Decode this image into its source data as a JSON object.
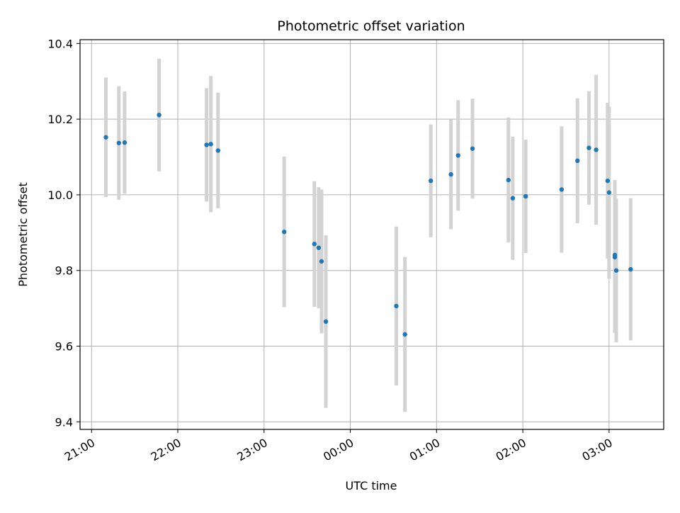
{
  "chart_data": {
    "type": "scatter",
    "title": "Photometric offset variation",
    "xlabel": "UTC time",
    "ylabel": "Photometric offset",
    "x_axis": {
      "kind": "time",
      "range": [
        "20:52",
        "03:38"
      ],
      "ticks": [
        "21:00",
        "22:00",
        "23:00",
        "00:00",
        "01:00",
        "02:00",
        "03:00"
      ]
    },
    "y_axis": {
      "range": [
        9.38,
        10.41
      ],
      "ticks": [
        "9.4",
        "9.6",
        "9.8",
        "10.0",
        "10.2",
        "10.4"
      ]
    },
    "grid": true,
    "legend": "none",
    "colors": {
      "point": "#1f77b4",
      "errorbar": "#d3d3d3"
    },
    "points": [
      {
        "t": "21:10",
        "y": 10.152,
        "err": 0.158
      },
      {
        "t": "21:19",
        "y": 10.137,
        "err": 0.15
      },
      {
        "t": "21:23",
        "y": 10.138,
        "err": 0.135
      },
      {
        "t": "21:47",
        "y": 10.211,
        "err": 0.149
      },
      {
        "t": "22:20",
        "y": 10.132,
        "err": 0.15
      },
      {
        "t": "22:23",
        "y": 10.134,
        "err": 0.18
      },
      {
        "t": "22:28",
        "y": 10.117,
        "err": 0.153
      },
      {
        "t": "23:14",
        "y": 9.902,
        "err": 0.199
      },
      {
        "t": "23:35",
        "y": 9.87,
        "err": 0.166
      },
      {
        "t": "23:38",
        "y": 9.86,
        "err": 0.16
      },
      {
        "t": "23:40",
        "y": 9.824,
        "err": 0.19
      },
      {
        "t": "23:43",
        "y": 9.665,
        "err": 0.228
      },
      {
        "t": "00:32",
        "y": 9.706,
        "err": 0.21
      },
      {
        "t": "00:38",
        "y": 9.631,
        "err": 0.205
      },
      {
        "t": "00:56",
        "y": 10.037,
        "err": 0.149
      },
      {
        "t": "01:10",
        "y": 10.054,
        "err": 0.145
      },
      {
        "t": "01:15",
        "y": 10.104,
        "err": 0.146
      },
      {
        "t": "01:25",
        "y": 10.122,
        "err": 0.132
      },
      {
        "t": "01:50",
        "y": 10.039,
        "err": 0.165
      },
      {
        "t": "01:53",
        "y": 9.991,
        "err": 0.163
      },
      {
        "t": "02:02",
        "y": 9.996,
        "err": 0.15
      },
      {
        "t": "02:27",
        "y": 10.014,
        "err": 0.167
      },
      {
        "t": "02:38",
        "y": 10.09,
        "err": 0.165
      },
      {
        "t": "02:46",
        "y": 10.124,
        "err": 0.15
      },
      {
        "t": "02:51",
        "y": 10.119,
        "err": 0.198
      },
      {
        "t": "02:59",
        "y": 10.037,
        "err": 0.206
      },
      {
        "t": "03:00",
        "y": 10.006,
        "err": 0.227
      },
      {
        "t": "03:04",
        "y": 9.841,
        "err": 0.198
      },
      {
        "t": "03:04",
        "y": 9.835,
        "err": 0.2
      },
      {
        "t": "03:05",
        "y": 9.8,
        "err": 0.19
      },
      {
        "t": "03:15",
        "y": 9.803,
        "err": 0.188
      }
    ]
  }
}
